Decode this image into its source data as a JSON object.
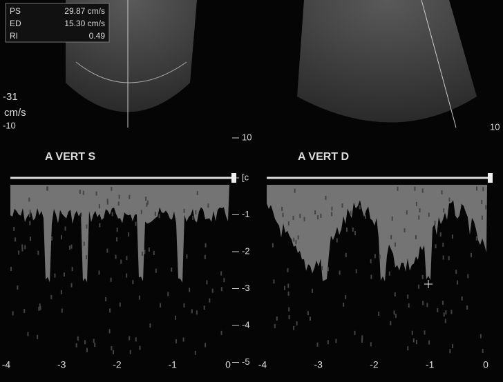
{
  "measurements": [
    {
      "label": "PS",
      "value": "29.87 cm/s"
    },
    {
      "label": "ED",
      "value": "15.30 cm/s"
    },
    {
      "label": "RI",
      "value": "0.49"
    }
  ],
  "color_scale": {
    "min": "-31",
    "unit": "cm/s"
  },
  "top_scale_label": "-10",
  "velocity_scale": [
    "10",
    "[c",
    "-1",
    "-2",
    "-3",
    "-4",
    "-5"
  ],
  "panels": [
    {
      "label": "A VERT S",
      "time_labels": [
        "-4",
        "-3",
        "-2",
        "-1",
        "0"
      ]
    },
    {
      "label": "A VERT D",
      "time_labels": [
        "-4",
        "-3",
        "-2",
        "-1",
        "0"
      ]
    }
  ],
  "right_edge_label": "10"
}
